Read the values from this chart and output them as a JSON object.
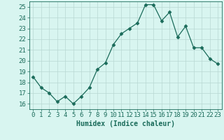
{
  "x": [
    0,
    1,
    2,
    3,
    4,
    5,
    6,
    7,
    8,
    9,
    10,
    11,
    12,
    13,
    14,
    15,
    16,
    17,
    18,
    19,
    20,
    21,
    22,
    23
  ],
  "y": [
    18.5,
    17.5,
    17.0,
    16.2,
    16.7,
    16.0,
    16.7,
    17.5,
    19.2,
    19.8,
    21.5,
    22.5,
    23.0,
    23.5,
    25.2,
    25.2,
    23.7,
    24.5,
    22.2,
    23.2,
    21.2,
    21.2,
    20.2,
    19.7
  ],
  "line_color": "#1a6b5a",
  "marker": "D",
  "marker_size": 2.5,
  "bg_color": "#d8f5f0",
  "grid_color": "#b8d8d2",
  "xlabel": "Humidex (Indice chaleur)",
  "ylim": [
    15.5,
    25.5
  ],
  "xlim": [
    -0.5,
    23.5
  ],
  "yticks": [
    16,
    17,
    18,
    19,
    20,
    21,
    22,
    23,
    24,
    25
  ],
  "xticks": [
    0,
    1,
    2,
    3,
    4,
    5,
    6,
    7,
    8,
    9,
    10,
    11,
    12,
    13,
    14,
    15,
    16,
    17,
    18,
    19,
    20,
    21,
    22,
    23
  ],
  "axis_color": "#1a6b5a",
  "tick_color": "#1a6b5a",
  "label_fontsize": 7,
  "tick_fontsize": 6.5
}
